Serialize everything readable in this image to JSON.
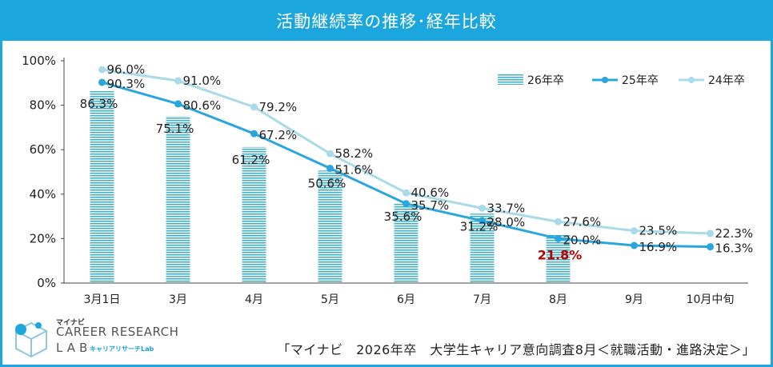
{
  "title": "活動継続率の推移･経年比較",
  "source": "「マイナビ　2026年卒　大学生キャリア意向調査8月＜就職活動・進路決定＞」",
  "logo": {
    "small": "マイナビ",
    "main": "CAREER RESEARCH",
    "lab": "LAB",
    "sub": "キャリアリサーチLab"
  },
  "colors": {
    "accent": "#1ba7dd",
    "bar": "#3ab0c8",
    "line25": "#2aa6df",
    "line24": "#a8dae8",
    "highlight": "#c00000"
  },
  "chart_data": {
    "type": "bar",
    "categories": [
      "3月1日",
      "3月",
      "4月",
      "5月",
      "6月",
      "7月",
      "8月",
      "9月",
      "10月中旬"
    ],
    "y_tick_labels": [
      "0%",
      "20%",
      "40%",
      "60%",
      "80%",
      "100%"
    ],
    "ylim": [
      0,
      100
    ],
    "legend_position": "top-right",
    "series": [
      {
        "name": "26年卒",
        "type": "bar",
        "values": [
          86.3,
          75.1,
          61.2,
          50.6,
          35.6,
          31.2,
          21.8,
          null,
          null
        ],
        "labels": [
          "86.3%",
          "75.1%",
          "61.2%",
          "50.6%",
          "35.6%",
          "31.2%",
          "21.8%",
          "",
          ""
        ]
      },
      {
        "name": "25年卒",
        "type": "line",
        "values": [
          90.3,
          80.6,
          67.2,
          51.6,
          35.7,
          28.0,
          20.0,
          16.9,
          16.3
        ],
        "labels": [
          "90.3%",
          "80.6%",
          "67.2%",
          "51.6%",
          "35.7%",
          "28.0%",
          "20.0%",
          "16.9%",
          "16.3%"
        ]
      },
      {
        "name": "24年卒",
        "type": "line",
        "values": [
          96.0,
          91.0,
          79.2,
          58.2,
          40.6,
          33.7,
          27.6,
          23.5,
          22.3
        ],
        "labels": [
          "96.0%",
          "91.0%",
          "79.2%",
          "58.2%",
          "40.6%",
          "33.7%",
          "27.6%",
          "23.5%",
          "22.3%"
        ]
      }
    ]
  }
}
